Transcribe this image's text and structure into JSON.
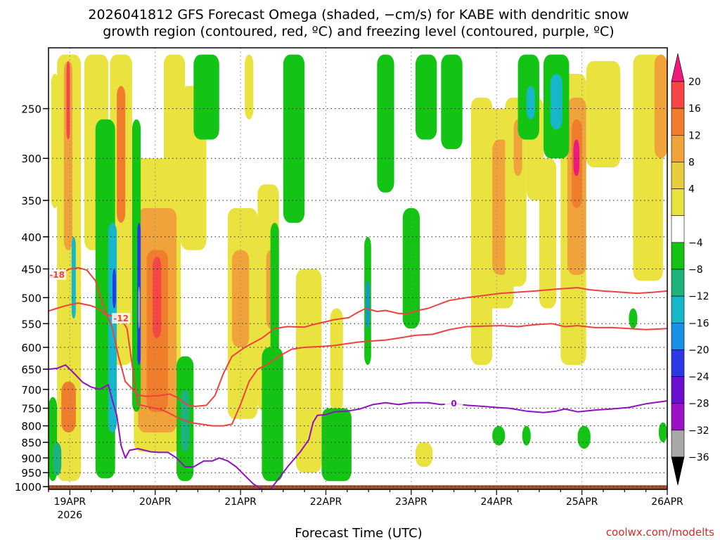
{
  "chart_data": {
    "type": "heatmap",
    "title_line1": "2026041812 GFS Forecast Omega (shaded, −cm/s) for KABE with dendritic snow",
    "title_line2": "growth region (contoured, red, ºC) and freezing level (contoured, purple, ºC)",
    "xlabel": "Forecast Time (UTC)",
    "watermark": "coolwx.com/modelts",
    "x_ticks": [
      {
        "t": 0.25,
        "label": "19APR",
        "sub": "2026"
      },
      {
        "t": 1.25,
        "label": "20APR",
        "sub": ""
      },
      {
        "t": 2.25,
        "label": "21APR",
        "sub": ""
      },
      {
        "t": 3.25,
        "label": "22APR",
        "sub": ""
      },
      {
        "t": 4.25,
        "label": "23APR",
        "sub": ""
      },
      {
        "t": 5.25,
        "label": "24APR",
        "sub": ""
      },
      {
        "t": 6.25,
        "label": "25APR",
        "sub": ""
      },
      {
        "t": 7.25,
        "label": "26APR",
        "sub": ""
      }
    ],
    "xlim": [
      0,
      7.25
    ],
    "y_ticks": [
      250,
      300,
      350,
      400,
      450,
      500,
      550,
      600,
      650,
      700,
      750,
      800,
      850,
      900,
      950,
      1000
    ],
    "ylim": [
      200,
      1010
    ],
    "y_scale": "log",
    "grid": true,
    "colorbar": {
      "labels": [
        20,
        16,
        12,
        8,
        4,
        -4,
        -8,
        -12,
        -16,
        -20,
        -24,
        -28,
        -32,
        -36
      ],
      "colors": [
        "#ec1c7c",
        "#f74545",
        "#ef7d2c",
        "#f0a33a",
        "#e7cc3d",
        "#e9e23f",
        "#ffffff",
        "#14c414",
        "#1cb47c",
        "#16b7c8",
        "#1890e6",
        "#2a39e4",
        "#6a0fd2",
        "#9c10c8",
        "#a8a8a8",
        "#000000"
      ],
      "range": [
        -40,
        24
      ]
    },
    "surface_color": "#a0522d",
    "omega_regions": [
      {
        "t0": 0.1,
        "t1": 0.38,
        "p0": 205,
        "p1": 980,
        "v": 5
      },
      {
        "t0": 0.18,
        "t1": 0.28,
        "p0": 210,
        "p1": 420,
        "v": 10
      },
      {
        "t0": 0.21,
        "t1": 0.25,
        "p0": 210,
        "p1": 280,
        "v": 18
      },
      {
        "t0": 0.15,
        "t1": 0.32,
        "p0": 680,
        "p1": 820,
        "v": 12
      },
      {
        "t0": 0.03,
        "t1": 0.12,
        "p0": 220,
        "p1": 360,
        "v": 5
      },
      {
        "t0": 0.0,
        "t1": 0.07,
        "p0": 840,
        "p1": 920,
        "v": 5
      },
      {
        "t0": 0.42,
        "t1": 0.7,
        "p0": 205,
        "p1": 420,
        "v": 5
      },
      {
        "t0": 0.72,
        "t1": 0.98,
        "p0": 205,
        "p1": 640,
        "v": 5
      },
      {
        "t0": 0.8,
        "t1": 0.9,
        "p0": 230,
        "p1": 380,
        "v": 12
      },
      {
        "t0": 1.0,
        "t1": 1.55,
        "p0": 300,
        "p1": 880,
        "v": 5
      },
      {
        "t0": 1.05,
        "t1": 1.5,
        "p0": 360,
        "p1": 820,
        "v": 10
      },
      {
        "t0": 1.15,
        "t1": 1.4,
        "p0": 420,
        "p1": 760,
        "v": 14
      },
      {
        "t0": 1.22,
        "t1": 1.32,
        "p0": 430,
        "p1": 580,
        "v": 16
      },
      {
        "t0": 1.35,
        "t1": 1.6,
        "p0": 205,
        "p1": 340,
        "v": 5
      },
      {
        "t0": 0.6,
        "t1": 0.72,
        "p0": 850,
        "p1": 920,
        "v": 5
      },
      {
        "t0": 1.55,
        "t1": 1.85,
        "p0": 230,
        "p1": 420,
        "v": 5
      },
      {
        "t0": 2.1,
        "t1": 2.45,
        "p0": 360,
        "p1": 780,
        "v": 5
      },
      {
        "t0": 2.15,
        "t1": 2.35,
        "p0": 420,
        "p1": 600,
        "v": 10
      },
      {
        "t0": 2.45,
        "t1": 2.7,
        "p0": 330,
        "p1": 760,
        "v": 5
      },
      {
        "t0": 2.55,
        "t1": 2.65,
        "p0": 420,
        "p1": 560,
        "v": 8
      },
      {
        "t0": 2.3,
        "t1": 2.4,
        "p0": 205,
        "p1": 260,
        "v": 5
      },
      {
        "t0": 2.9,
        "t1": 3.2,
        "p0": 450,
        "p1": 950,
        "v": 5
      },
      {
        "t0": 3.3,
        "t1": 3.45,
        "p0": 520,
        "p1": 760,
        "v": 5
      },
      {
        "t0": 4.3,
        "t1": 4.5,
        "p0": 850,
        "p1": 930,
        "v": 5
      },
      {
        "t0": 4.95,
        "t1": 5.2,
        "p0": 240,
        "p1": 640,
        "v": 5
      },
      {
        "t0": 5.1,
        "t1": 5.45,
        "p0": 250,
        "p1": 520,
        "v": 5
      },
      {
        "t0": 5.2,
        "t1": 5.4,
        "p0": 280,
        "p1": 460,
        "v": 9
      },
      {
        "t0": 5.35,
        "t1": 5.6,
        "p0": 240,
        "p1": 480,
        "v": 5
      },
      {
        "t0": 5.45,
        "t1": 5.55,
        "p0": 260,
        "p1": 320,
        "v": 9
      },
      {
        "t0": 5.6,
        "t1": 5.8,
        "p0": 240,
        "p1": 350,
        "v": 5
      },
      {
        "t0": 5.75,
        "t1": 5.95,
        "p0": 300,
        "p1": 520,
        "v": 5
      },
      {
        "t0": 6.0,
        "t1": 6.3,
        "p0": 220,
        "p1": 640,
        "v": 5
      },
      {
        "t0": 6.08,
        "t1": 6.3,
        "p0": 240,
        "p1": 460,
        "v": 9
      },
      {
        "t0": 6.13,
        "t1": 6.25,
        "p0": 260,
        "p1": 360,
        "v": 14
      },
      {
        "t0": 6.15,
        "t1": 6.22,
        "p0": 280,
        "p1": 320,
        "v": 20
      },
      {
        "t0": 6.3,
        "t1": 6.7,
        "p0": 210,
        "p1": 310,
        "v": 5
      },
      {
        "t0": 6.85,
        "t1": 7.2,
        "p0": 205,
        "p1": 470,
        "v": 5
      },
      {
        "t0": 7.1,
        "t1": 7.25,
        "p0": 205,
        "p1": 300,
        "v": 9
      }
    ],
    "omega_regions_neg": [
      {
        "t0": 0.0,
        "t1": 0.1,
        "p0": 720,
        "p1": 980,
        "v": -6
      },
      {
        "t0": 0.05,
        "t1": 0.15,
        "p0": 850,
        "p1": 960,
        "v": -10
      },
      {
        "t0": 0.55,
        "t1": 0.78,
        "p0": 260,
        "p1": 970,
        "v": -6
      },
      {
        "t0": 0.7,
        "t1": 0.8,
        "p0": 380,
        "p1": 820,
        "v": -14
      },
      {
        "t0": 0.98,
        "t1": 1.08,
        "p0": 260,
        "p1": 760,
        "v": -6
      },
      {
        "t0": 1.04,
        "t1": 1.08,
        "p0": 380,
        "p1": 640,
        "v": -22
      },
      {
        "t0": 1.05,
        "t1": 1.07,
        "p0": 480,
        "p1": 560,
        "v": -36
      },
      {
        "t0": 0.27,
        "t1": 0.32,
        "p0": 400,
        "p1": 540,
        "v": -16
      },
      {
        "t0": 0.75,
        "t1": 0.79,
        "p0": 450,
        "p1": 520,
        "v": -24
      },
      {
        "t0": 1.5,
        "t1": 1.7,
        "p0": 620,
        "p1": 980,
        "v": -6
      },
      {
        "t0": 1.55,
        "t1": 1.65,
        "p0": 700,
        "p1": 880,
        "v": -12
      },
      {
        "t0": 1.7,
        "t1": 2.0,
        "p0": 205,
        "p1": 280,
        "v": -6
      },
      {
        "t0": 2.5,
        "t1": 2.75,
        "p0": 600,
        "p1": 980,
        "v": -6
      },
      {
        "t0": 2.6,
        "t1": 2.7,
        "p0": 380,
        "p1": 620,
        "v": -8
      },
      {
        "t0": 2.75,
        "t1": 3.0,
        "p0": 205,
        "p1": 380,
        "v": -6
      },
      {
        "t0": 3.2,
        "t1": 3.55,
        "p0": 750,
        "p1": 980,
        "v": -6
      },
      {
        "t0": 3.7,
        "t1": 3.78,
        "p0": 400,
        "p1": 640,
        "v": -8
      },
      {
        "t0": 3.72,
        "t1": 3.76,
        "p0": 470,
        "p1": 560,
        "v": -20
      },
      {
        "t0": 3.85,
        "t1": 4.05,
        "p0": 205,
        "p1": 340,
        "v": -6
      },
      {
        "t0": 4.15,
        "t1": 4.35,
        "p0": 360,
        "p1": 560,
        "v": -6
      },
      {
        "t0": 4.3,
        "t1": 4.55,
        "p0": 205,
        "p1": 280,
        "v": -6
      },
      {
        "t0": 4.6,
        "t1": 4.85,
        "p0": 205,
        "p1": 290,
        "v": -6
      },
      {
        "t0": 5.5,
        "t1": 5.75,
        "p0": 205,
        "p1": 280,
        "v": -8
      },
      {
        "t0": 5.6,
        "t1": 5.7,
        "p0": 230,
        "p1": 260,
        "v": -14
      },
      {
        "t0": 5.8,
        "t1": 6.1,
        "p0": 205,
        "p1": 300,
        "v": -6
      },
      {
        "t0": 5.88,
        "t1": 6.02,
        "p0": 220,
        "p1": 270,
        "v": -13
      },
      {
        "t0": 5.2,
        "t1": 5.35,
        "p0": 800,
        "p1": 860,
        "v": -6
      },
      {
        "t0": 5.55,
        "t1": 5.65,
        "p0": 800,
        "p1": 860,
        "v": -6
      },
      {
        "t0": 6.2,
        "t1": 6.35,
        "p0": 800,
        "p1": 870,
        "v": -6
      },
      {
        "t0": 6.8,
        "t1": 6.9,
        "p0": 520,
        "p1": 560,
        "v": -6
      },
      {
        "t0": 7.15,
        "t1": 7.25,
        "p0": 790,
        "p1": 850,
        "v": -6
      }
    ],
    "series": [
      {
        "name": "-18",
        "color": "#f04040",
        "label_t": 0.07,
        "points": [
          [
            0.0,
            465
          ],
          [
            0.1,
            460
          ],
          [
            0.25,
            450
          ],
          [
            0.35,
            448
          ],
          [
            0.45,
            452
          ],
          [
            0.55,
            470
          ],
          [
            0.65,
            520
          ],
          [
            0.75,
            560
          ],
          [
            0.82,
            620
          ],
          [
            0.9,
            680
          ],
          [
            1.05,
            715
          ],
          [
            1.15,
            718
          ],
          [
            1.3,
            716
          ],
          [
            1.42,
            712
          ],
          [
            1.5,
            720
          ],
          [
            1.62,
            740
          ],
          [
            1.72,
            745
          ],
          [
            1.85,
            742
          ],
          [
            1.95,
            716
          ],
          [
            2.05,
            660
          ],
          [
            2.15,
            620
          ],
          [
            2.3,
            600
          ],
          [
            2.5,
            580
          ],
          [
            2.65,
            560
          ],
          [
            2.8,
            556
          ],
          [
            3.0,
            557
          ],
          [
            3.1,
            552
          ],
          [
            3.2,
            548
          ],
          [
            3.35,
            542
          ],
          [
            3.52,
            538
          ],
          [
            3.62,
            528
          ],
          [
            3.72,
            520
          ],
          [
            3.85,
            526
          ],
          [
            3.95,
            524
          ],
          [
            4.1,
            530
          ],
          [
            4.22,
            530
          ],
          [
            4.3,
            525
          ],
          [
            4.45,
            520
          ],
          [
            4.58,
            512
          ],
          [
            4.7,
            505
          ],
          [
            4.9,
            500
          ],
          [
            5.1,
            496
          ],
          [
            5.3,
            492
          ],
          [
            5.5,
            490
          ],
          [
            5.7,
            488
          ],
          [
            5.85,
            486
          ],
          [
            6.0,
            484
          ],
          [
            6.2,
            482
          ],
          [
            6.35,
            486
          ],
          [
            6.5,
            488
          ],
          [
            6.7,
            490
          ],
          [
            6.9,
            492
          ],
          [
            7.1,
            490
          ],
          [
            7.25,
            488
          ]
        ]
      },
      {
        "name": "-12",
        "color": "#f04040",
        "label_t": 0.87,
        "points": [
          [
            0.0,
            525
          ],
          [
            0.1,
            520
          ],
          [
            0.2,
            515
          ],
          [
            0.35,
            510
          ],
          [
            0.5,
            515
          ],
          [
            0.58,
            520
          ],
          [
            0.65,
            530
          ],
          [
            0.75,
            535
          ],
          [
            0.85,
            540
          ],
          [
            0.92,
            560
          ],
          [
            0.98,
            640
          ],
          [
            1.02,
            700
          ],
          [
            1.05,
            740
          ],
          [
            1.15,
            745
          ],
          [
            1.25,
            750
          ],
          [
            1.3,
            752
          ],
          [
            1.4,
            762
          ],
          [
            1.5,
            775
          ],
          [
            1.6,
            785
          ],
          [
            1.7,
            792
          ],
          [
            1.82,
            796
          ],
          [
            1.92,
            800
          ],
          [
            2.05,
            800
          ],
          [
            2.15,
            795
          ],
          [
            2.25,
            740
          ],
          [
            2.35,
            680
          ],
          [
            2.45,
            650
          ],
          [
            2.55,
            640
          ],
          [
            2.7,
            620
          ],
          [
            2.85,
            604
          ],
          [
            3.0,
            600
          ],
          [
            3.2,
            598
          ],
          [
            3.35,
            596
          ],
          [
            3.5,
            592
          ],
          [
            3.65,
            588
          ],
          [
            3.8,
            586
          ],
          [
            3.95,
            584
          ],
          [
            4.1,
            580
          ],
          [
            4.3,
            574
          ],
          [
            4.5,
            572
          ],
          [
            4.7,
            562
          ],
          [
            4.9,
            556
          ],
          [
            5.1,
            555
          ],
          [
            5.3,
            554
          ],
          [
            5.5,
            556
          ],
          [
            5.7,
            552
          ],
          [
            5.9,
            550
          ],
          [
            6.05,
            556
          ],
          [
            6.2,
            554
          ],
          [
            6.4,
            558
          ],
          [
            6.6,
            558
          ],
          [
            6.8,
            560
          ],
          [
            7.0,
            562
          ],
          [
            7.25,
            560
          ]
        ]
      },
      {
        "name": "0",
        "color": "#9010c0",
        "label_t": 4.82,
        "points": [
          [
            0.0,
            650
          ],
          [
            0.1,
            648
          ],
          [
            0.2,
            640
          ],
          [
            0.3,
            660
          ],
          [
            0.4,
            682
          ],
          [
            0.5,
            694
          ],
          [
            0.6,
            700
          ],
          [
            0.7,
            688
          ],
          [
            0.75,
            730
          ],
          [
            0.8,
            770
          ],
          [
            0.85,
            860
          ],
          [
            0.9,
            900
          ],
          [
            0.95,
            875
          ],
          [
            1.05,
            870
          ],
          [
            1.2,
            880
          ],
          [
            1.3,
            882
          ],
          [
            1.4,
            882
          ],
          [
            1.5,
            900
          ],
          [
            1.6,
            930
          ],
          [
            1.7,
            930
          ],
          [
            1.82,
            910
          ],
          [
            1.92,
            910
          ],
          [
            2.0,
            900
          ],
          [
            2.1,
            910
          ],
          [
            2.2,
            930
          ],
          [
            2.3,
            960
          ],
          [
            2.4,
            990
          ],
          [
            2.5,
            1010
          ],
          [
            2.6,
            1010
          ],
          [
            2.7,
            970
          ],
          [
            2.8,
            930
          ],
          [
            2.95,
            880
          ],
          [
            3.05,
            842
          ],
          [
            3.1,
            790
          ],
          [
            3.15,
            770
          ],
          [
            3.25,
            768
          ],
          [
            3.35,
            760
          ],
          [
            3.5,
            758
          ],
          [
            3.65,
            752
          ],
          [
            3.8,
            740
          ],
          [
            3.95,
            735
          ],
          [
            4.1,
            740
          ],
          [
            4.25,
            735
          ],
          [
            4.45,
            735
          ],
          [
            4.6,
            740
          ],
          [
            4.75,
            737
          ],
          [
            4.9,
            742
          ],
          [
            5.1,
            745
          ],
          [
            5.25,
            748
          ],
          [
            5.4,
            750
          ],
          [
            5.6,
            758
          ],
          [
            5.8,
            762
          ],
          [
            5.95,
            758
          ],
          [
            6.05,
            752
          ],
          [
            6.2,
            760
          ],
          [
            6.4,
            755
          ],
          [
            6.6,
            752
          ],
          [
            6.8,
            748
          ],
          [
            7.0,
            738
          ],
          [
            7.25,
            730
          ]
        ]
      }
    ]
  }
}
